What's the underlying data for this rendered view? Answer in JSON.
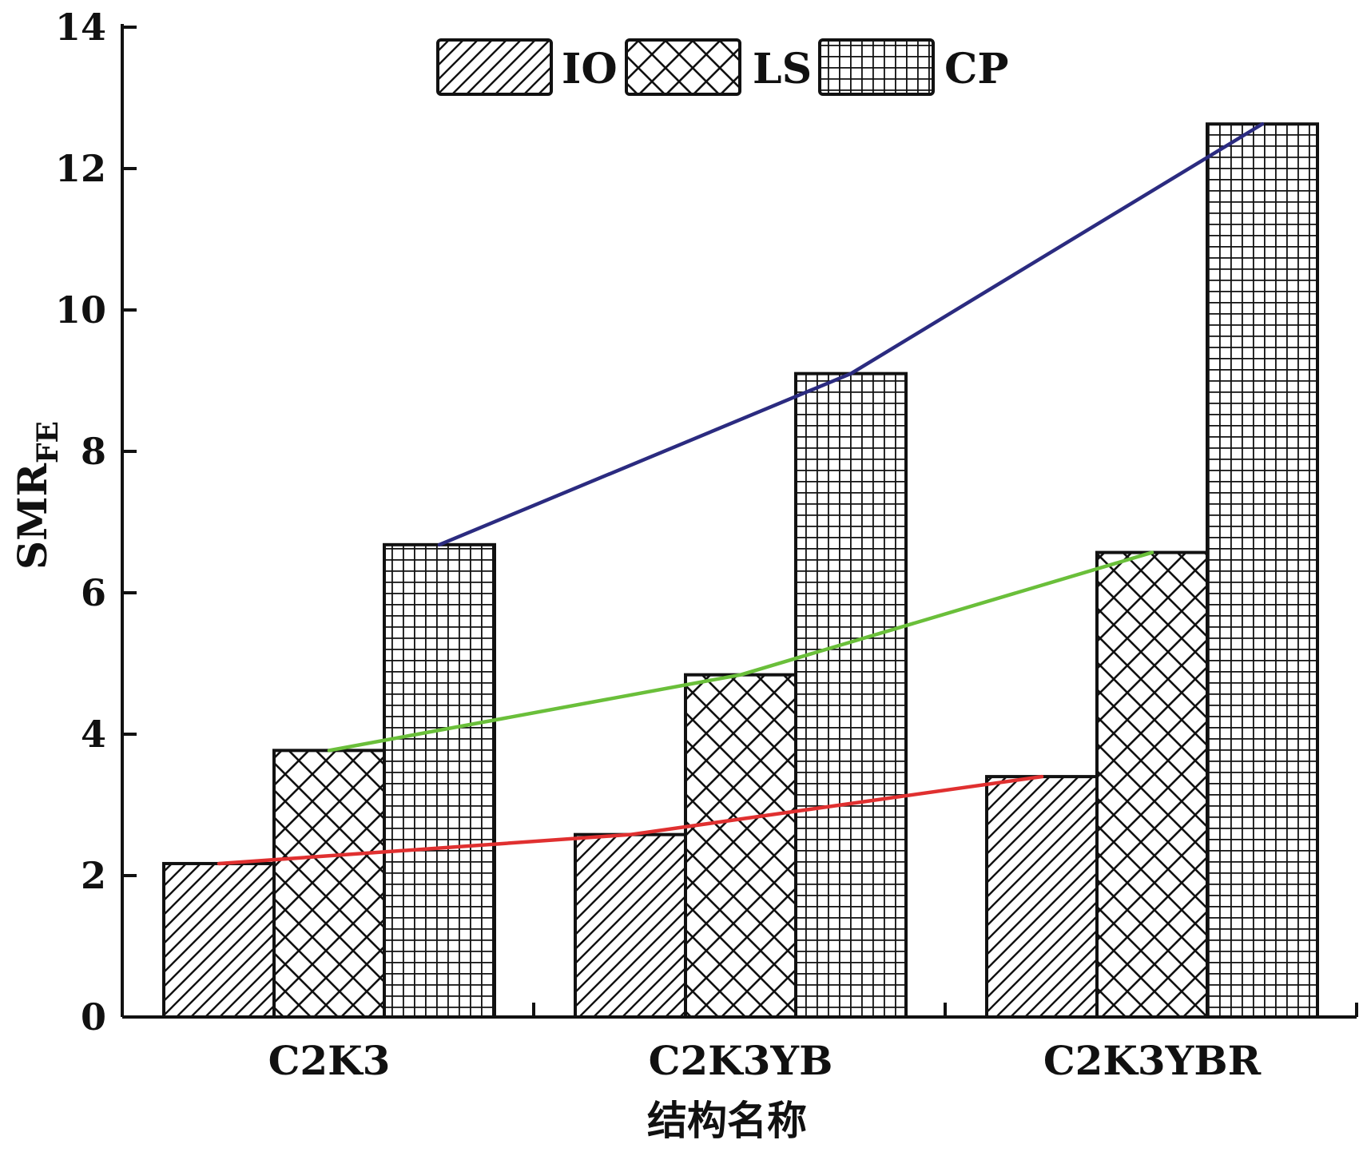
{
  "chart_data": {
    "type": "bar",
    "title": "",
    "xlabel": "结构名称",
    "ylabel": "SMR",
    "ylabel_subscript": "FE",
    "categories": [
      "C2K3",
      "C2K3YB",
      "C2K3YBR"
    ],
    "series": [
      {
        "name": "IO",
        "pattern": "diagonal-hatch",
        "values": [
          2.17,
          2.58,
          3.4
        ]
      },
      {
        "name": "LS",
        "pattern": "cross-hatch",
        "values": [
          3.77,
          4.84,
          6.57
        ]
      },
      {
        "name": "CP",
        "pattern": "grid",
        "values": [
          6.68,
          9.1,
          12.63
        ]
      }
    ],
    "trend_lines": [
      {
        "series": "IO",
        "color": "#e03030"
      },
      {
        "series": "LS",
        "color": "#6abf3a"
      },
      {
        "series": "CP",
        "color": "#2b2b80"
      }
    ],
    "ylim": [
      0,
      14
    ],
    "yticks": [
      0,
      2,
      4,
      6,
      8,
      10,
      12,
      14
    ],
    "grid": false,
    "legend_position": "top-center"
  }
}
